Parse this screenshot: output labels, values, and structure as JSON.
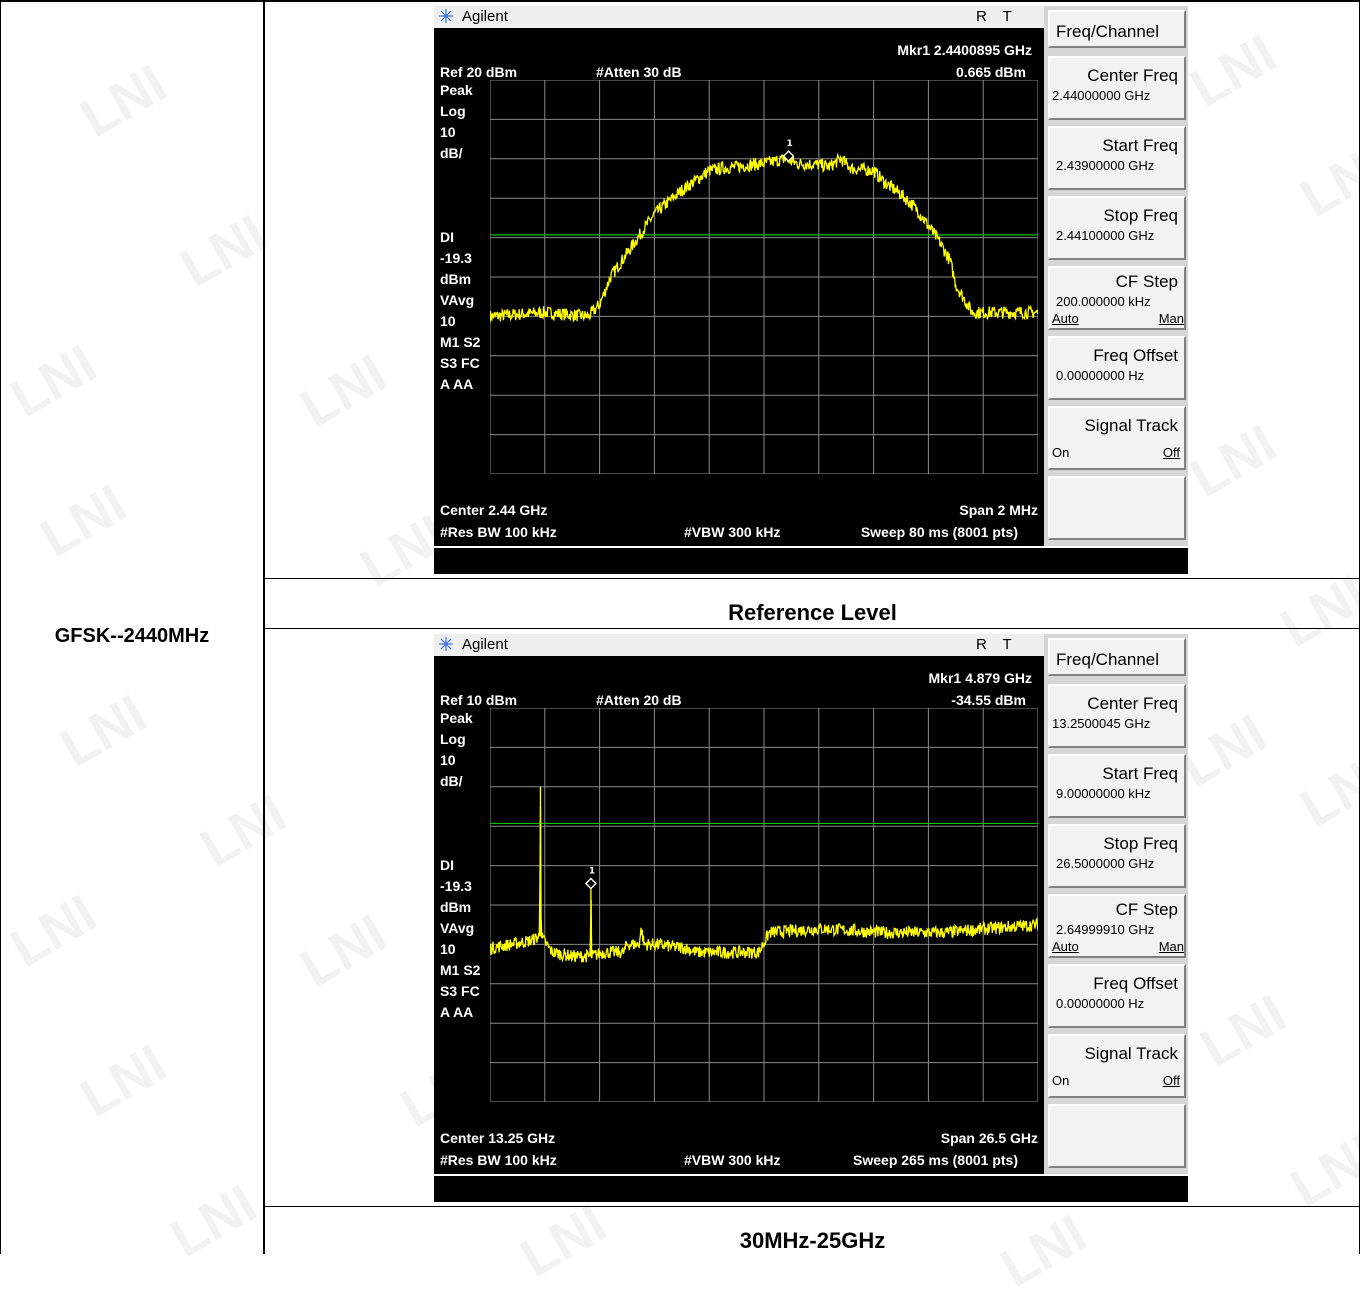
{
  "row_label": "GFSK--2440MHz",
  "watermark": "LNI",
  "panels": [
    {
      "caption": "Reference Level",
      "brand": "Agilent",
      "indicators": "RT",
      "marker_readout": "Mkr1  2.4400895 GHz",
      "marker_level": "0.665 dBm",
      "ref": "Ref 20 dBm",
      "atten": "#Atten 30 dB",
      "left_labels": [
        "Peak",
        "Log",
        "10",
        "dB/",
        "",
        "",
        "",
        "DI",
        "-19.3",
        "dBm",
        "VAvg",
        "10",
        "M1  S2",
        "S3  FC",
        "A    AA"
      ],
      "center": "Center 2.44 GHz",
      "span": "Span 2 MHz",
      "rbw": "#Res BW 100 kHz",
      "vbw": "#VBW 300 kHz",
      "sweep": "Sweep 80 ms (8001 pts)",
      "marker_tag": "1",
      "trace_color": "#ffff00",
      "display_line_color": "#00c000",
      "softkeys": {
        "head": "Freq/Channel",
        "center_freq": {
          "label": "Center Freq",
          "value": "2.44000000 GHz"
        },
        "start_freq": {
          "label": "Start Freq",
          "value": "2.43900000 GHz"
        },
        "stop_freq": {
          "label": "Stop Freq",
          "value": "2.44100000 GHz"
        },
        "cf_step": {
          "label": "CF Step",
          "value": "200.000000 kHz",
          "auto": "Auto",
          "man": "Man"
        },
        "freq_offset": {
          "label": "Freq Offset",
          "value": "0.00000000  Hz"
        },
        "signal_track": {
          "label": "Signal Track",
          "on": "On",
          "off": "Off"
        }
      },
      "chart_data": {
        "type": "line",
        "x_unit": "GHz",
        "y_unit": "dBm",
        "xlim": [
          2.439,
          2.441
        ],
        "ylim": [
          -80,
          20
        ],
        "display_line_dbm": -19.3,
        "marker": {
          "x": 2.4400895,
          "y": 0.665
        },
        "series": [
          {
            "x": [
              2.439,
              2.4392,
              2.43936,
              2.4394,
              2.43944,
              2.4395,
              2.43956,
              2.4396,
              2.4397,
              2.43976,
              2.4398,
              2.43984,
              2.4399,
              2.43996,
              2.44,
              2.44008,
              2.44012,
              2.4402,
              2.44024,
              2.44028,
              2.44032,
              2.4404,
              2.44044,
              2.4405,
              2.44056,
              2.4406,
              2.44064,
              2.44068,
              2.4407,
              2.44076,
              2.441
            ],
            "y": [
              -40.0,
              -39.0,
              -40.0,
              -37.0,
              -30.0,
              -24.0,
              -18.0,
              -14.0,
              -8.0,
              -5.0,
              -3.0,
              -2.5,
              -2.0,
              -1.5,
              -1.2,
              0.0,
              -1.2,
              -1.5,
              -2.0,
              0.0,
              -2.5,
              -3.0,
              -6.0,
              -9.0,
              -13.0,
              -17.0,
              -21.0,
              -26.0,
              -32.0,
              -39.0,
              -39.0
            ]
          }
        ]
      }
    },
    {
      "caption": "30MHz-25GHz",
      "brand": "Agilent",
      "indicators": "RT",
      "marker_readout": "Mkr1  4.879 GHz",
      "marker_level": "-34.55 dBm",
      "ref": "Ref 10 dBm",
      "atten": "#Atten 20 dB",
      "left_labels": [
        "Peak",
        "Log",
        "10",
        "dB/",
        "",
        "",
        "",
        "DI",
        "-19.3",
        "dBm",
        "VAvg",
        "10",
        "M1  S2",
        "S3  FC",
        "A    AA"
      ],
      "center": "Center 13.25 GHz",
      "span": "Span 26.5 GHz",
      "rbw": "#Res BW 100 kHz",
      "vbw": "#VBW 300 kHz",
      "sweep": "Sweep 265 ms (8001 pts)",
      "marker_tag": "1",
      "trace_color": "#ffff00",
      "display_line_color": "#00c000",
      "softkeys": {
        "head": "Freq/Channel",
        "center_freq": {
          "label": "Center Freq",
          "value": "13.2500045 GHz"
        },
        "start_freq": {
          "label": "Start Freq",
          "value": "9.00000000 kHz"
        },
        "stop_freq": {
          "label": "Stop Freq",
          "value": "26.5000000 GHz"
        },
        "cf_step": {
          "label": "CF Step",
          "value": "2.64999910 GHz",
          "auto": "Auto",
          "man": "Man"
        },
        "freq_offset": {
          "label": "Freq Offset",
          "value": "0.00000000  Hz"
        },
        "signal_track": {
          "label": "Signal Track",
          "on": "On",
          "off": "Off"
        }
      },
      "chart_data": {
        "type": "line",
        "x_unit": "GHz",
        "y_unit": "dBm",
        "xlim": [
          0,
          26.5
        ],
        "ylim": [
          -90,
          10
        ],
        "display_line_dbm": -19.3,
        "marker": {
          "x": 4.879,
          "y": -34.55
        },
        "series": [
          {
            "x": [
              0,
              1.0,
              2.0,
              2.4,
              2.44,
              2.48,
              2.6,
              3.0,
              4.0,
              4.85,
              4.879,
              4.91,
              5.5,
              6.5,
              6.6,
              7.2,
              7.32,
              7.45,
              8.0,
              9.5,
              10.0,
              13.0,
              13.5,
              16.0,
              19.0,
              22.0,
              24.0,
              26.5
            ],
            "y": [
              -51.0,
              -50.0,
              -49.0,
              -48.0,
              -10.0,
              -48.0,
              -49.0,
              -52.0,
              -53.0,
              -53.0,
              -34.55,
              -53.0,
              -52.0,
              -52.0,
              -50.0,
              -50.0,
              -46.0,
              -50.0,
              -50.0,
              -51.0,
              -52.0,
              -52.0,
              -47.0,
              -46.0,
              -47.0,
              -47.0,
              -46.0,
              -45.0
            ]
          }
        ]
      }
    }
  ]
}
